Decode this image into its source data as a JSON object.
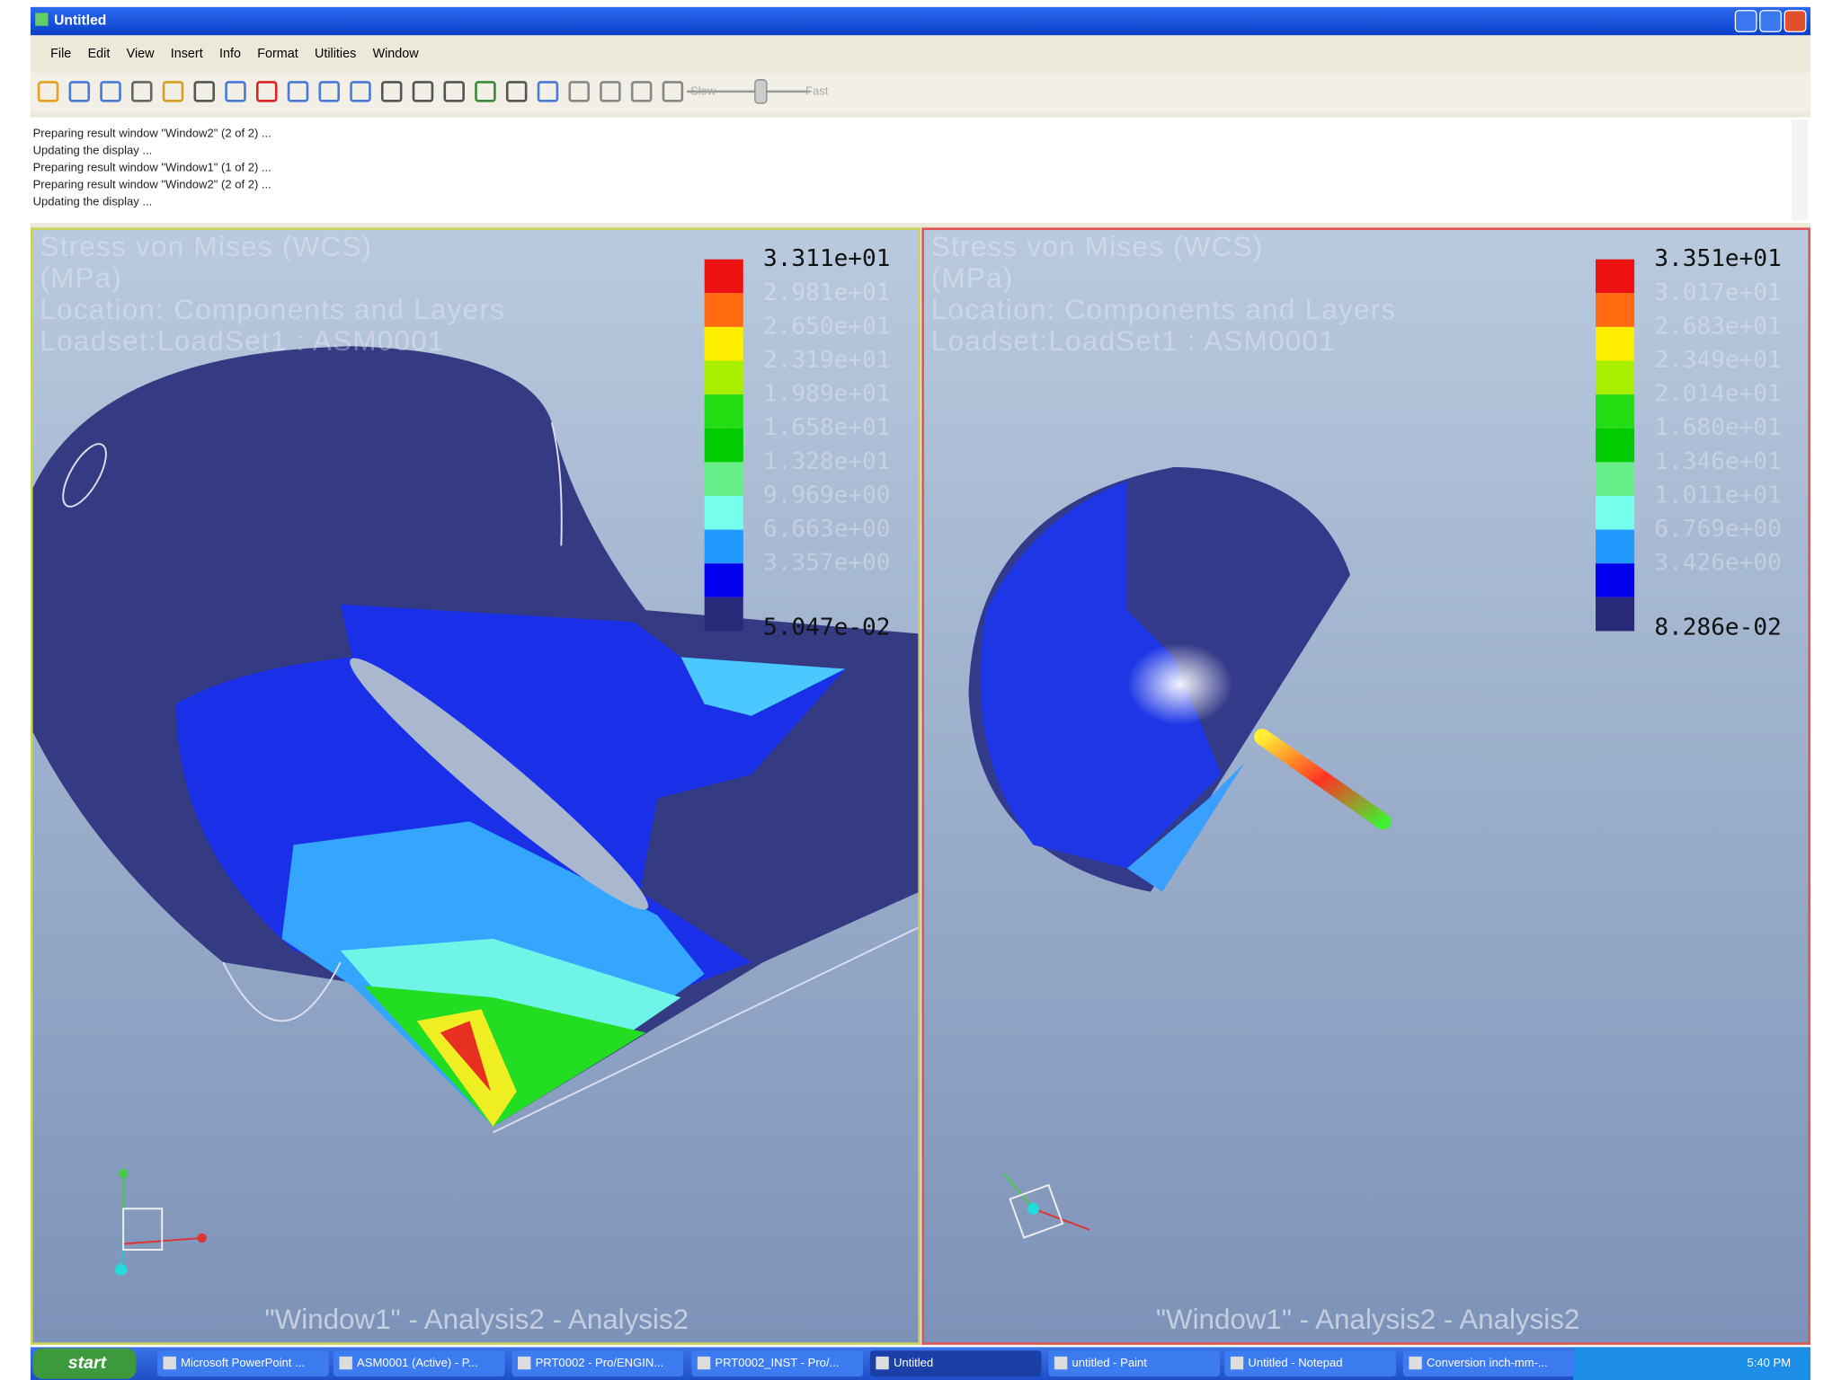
{
  "window": {
    "title": "Untitled",
    "menu": [
      "File",
      "Edit",
      "View",
      "Insert",
      "Info",
      "Format",
      "Utilities",
      "Window"
    ]
  },
  "toolbar": {
    "slow": "Slow",
    "fast": "Fast"
  },
  "log": [
    "Preparing result window \"Window2\" (2 of 2) ...",
    "Updating the display ...",
    "Preparing result window \"Window1\" (1 of 2) ...",
    "Preparing result window \"Window2\" (2 of 2) ...",
    "Updating the display ..."
  ],
  "panels": [
    {
      "title_lines": [
        "Stress von Mises (WCS)",
        "(MPa)",
        "Location: Components and Layers",
        "Loadset:LoadSet1 : ASM0001"
      ],
      "legend": [
        "3.311e+01",
        "2.981e+01",
        "2.650e+01",
        "2.319e+01",
        "1.989e+01",
        "1.658e+01",
        "1.328e+01",
        "9.969e+00",
        "6.663e+00",
        "3.357e+00",
        "5.047e-02"
      ],
      "footer": "\"Window1\" - Analysis2 - Analysis2"
    },
    {
      "title_lines": [
        "Stress von Mises (WCS)",
        "(MPa)",
        "Location: Components and Layers",
        "Loadset:LoadSet1 : ASM0001"
      ],
      "legend": [
        "3.351e+01",
        "3.017e+01",
        "2.683e+01",
        "2.349e+01",
        "2.014e+01",
        "1.680e+01",
        "1.346e+01",
        "1.011e+01",
        "6.769e+00",
        "3.426e+00",
        "8.286e-02"
      ],
      "footer": "\"Window1\" - Analysis2 - Analysis2"
    }
  ],
  "taskbar": {
    "start": "start",
    "items": [
      "Microsoft PowerPoint ...",
      "ASM0001 (Active) - P...",
      "PRT0002 - Pro/ENGIN...",
      "PRT0002_INST - Pro/...",
      "Untitled",
      "untitled - Paint",
      "Untitled - Notepad",
      "Conversion inch-mm-..."
    ],
    "clock": "5:40 PM"
  }
}
